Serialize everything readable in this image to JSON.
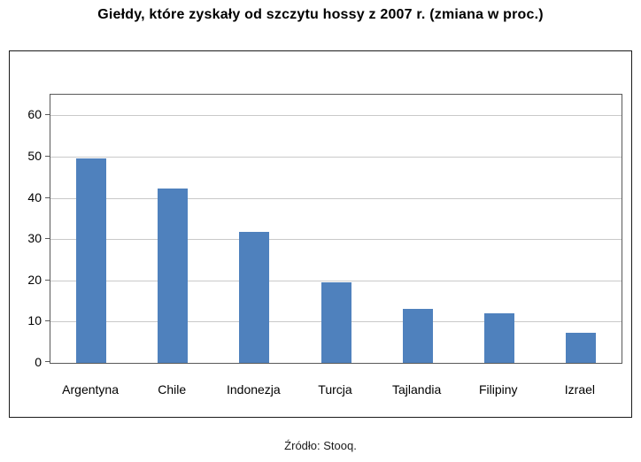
{
  "chart_data": {
    "type": "bar",
    "title": "Giełdy, które zyskały od szczytu hossy z 2007 r. (zmiana w proc.)",
    "source": "Źródło: Stooq.",
    "categories": [
      "Argentyna",
      "Chile",
      "Indonezja",
      "Turcja",
      "Tajlandia",
      "Filipiny",
      "Izrael"
    ],
    "values": [
      49.5,
      42.3,
      31.8,
      19.6,
      13.1,
      12.1,
      7.2
    ],
    "xlabel": "",
    "ylabel": "",
    "ylim": [
      0,
      65
    ],
    "yticks": [
      0,
      10,
      20,
      30,
      40,
      50,
      60
    ],
    "grid": "horizontal",
    "legend": "none",
    "bar_color": "#4f81bd"
  }
}
